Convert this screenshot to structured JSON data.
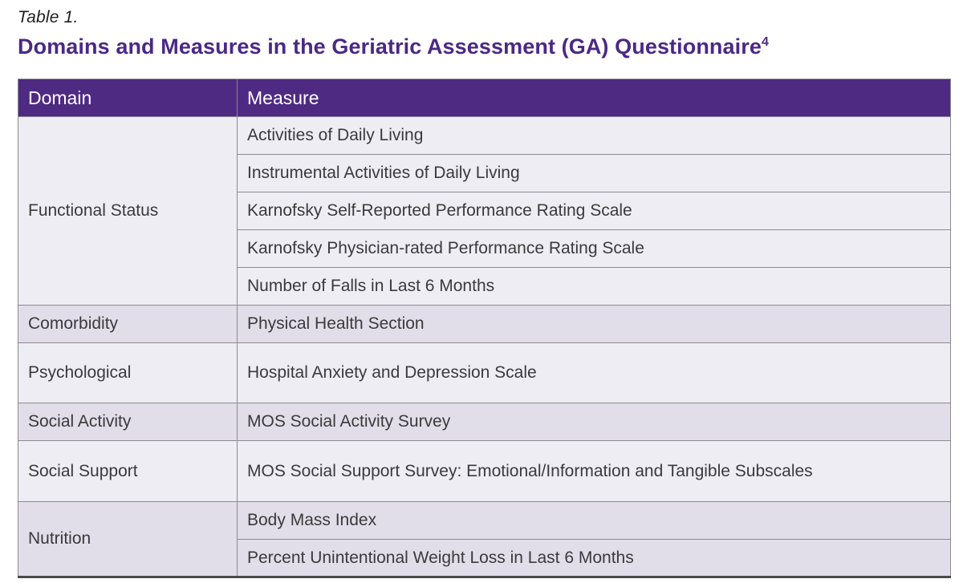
{
  "caption": "Table 1.",
  "heading": {
    "text": "Domains and Measures in the Geriatric Assessment (GA) Questionnaire",
    "superscript": "4"
  },
  "table": {
    "columns": {
      "domain": "Domain",
      "measure": "Measure"
    },
    "groups": [
      {
        "domain": "Functional Status",
        "measures": [
          "Activities of Daily Living",
          "Instrumental Activities of Daily Living",
          "Karnofsky Self-Reported Performance Rating Scale",
          "Karnofsky Physician-rated Performance Rating Scale",
          "Number of Falls in Last 6 Months"
        ]
      },
      {
        "domain": "Comorbidity",
        "measures": [
          "Physical Health Section"
        ]
      },
      {
        "domain": "Psychological",
        "measures": [
          "Hospital Anxiety and Depression Scale"
        ]
      },
      {
        "domain": "Social Activity",
        "measures": [
          "MOS Social Activity Survey"
        ]
      },
      {
        "domain": "Social Support",
        "measures": [
          "MOS Social Support Survey: Emotional/Information and Tangible Subscales"
        ]
      },
      {
        "domain": "Nutrition",
        "measures": [
          "Body Mass Index",
          "Percent Unintentional Weight Loss in Last 6 Months"
        ]
      }
    ]
  },
  "colors": {
    "header_purple": "#4f2a82",
    "heading_purple": "#4b2885",
    "row_light": "#efedf4",
    "row_dark": "#e2dee9",
    "grid_gray": "#8b8a92",
    "bottom_border": "#4b4b4d",
    "body_text": "#3a3a3c"
  }
}
